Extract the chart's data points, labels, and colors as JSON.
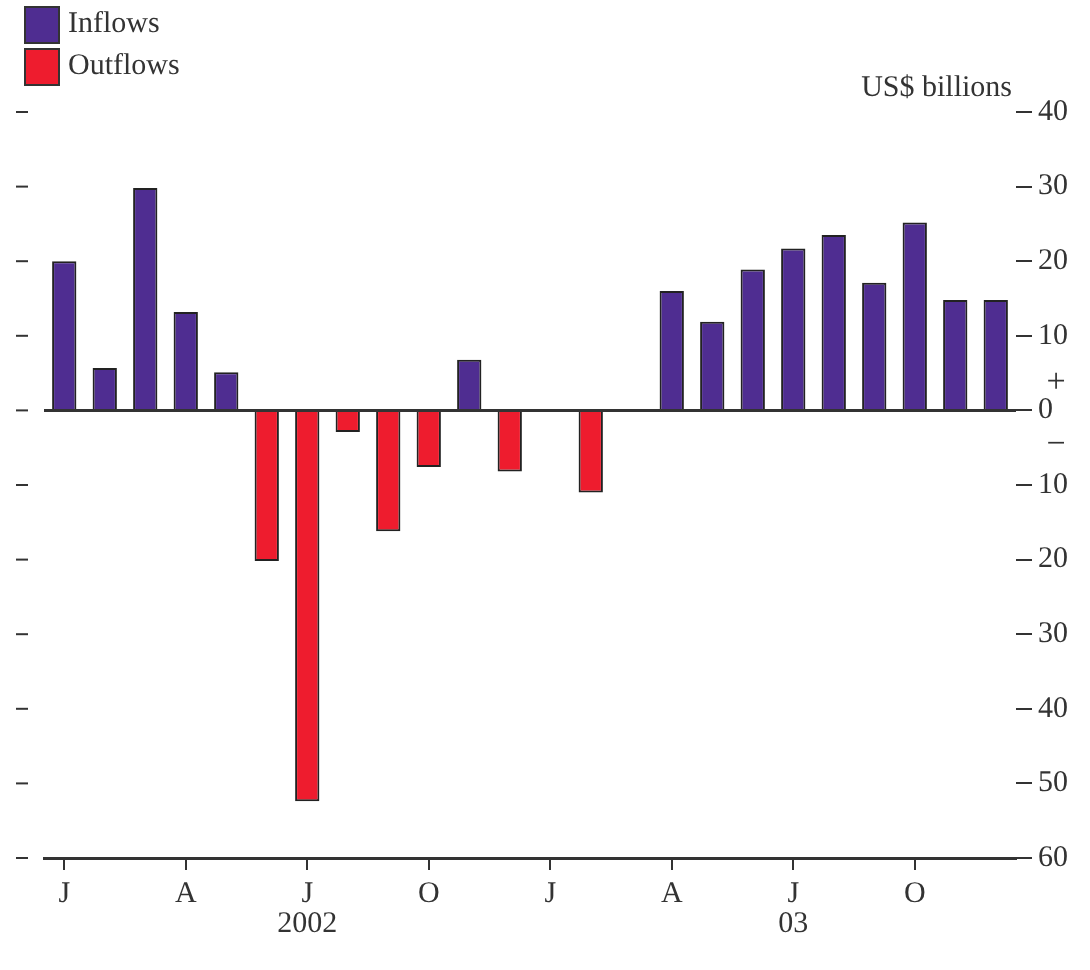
{
  "chart_data": {
    "type": "bar",
    "ylabel": "US$ billions",
    "categories": [
      "J",
      null,
      null,
      "A",
      null,
      null,
      "J",
      null,
      null,
      "O",
      null,
      null,
      "J",
      null,
      null,
      "A",
      null,
      null,
      "J",
      null,
      null,
      "O",
      null,
      null
    ],
    "series": [
      {
        "name": "Inflows",
        "color": "#4f2d91",
        "values": [
          20,
          5.7,
          29.8,
          13.2,
          5.1,
          null,
          null,
          null,
          null,
          null,
          6.8,
          null,
          null,
          null,
          null,
          16,
          11.9,
          18.9,
          21.7,
          23.5,
          17.1,
          25.2,
          14.8,
          14.8
        ]
      },
      {
        "name": "Outflows",
        "color": "#ee1c2e",
        "values": [
          null,
          null,
          null,
          null,
          null,
          -20.2,
          -52.4,
          -2.9,
          -16.2,
          -7.6,
          null,
          -8.2,
          null,
          -11,
          null,
          null,
          null,
          null,
          null,
          null,
          null,
          null,
          null,
          null
        ]
      }
    ],
    "stacked": true,
    "ylim": [
      -60,
      40
    ],
    "yticks": [
      {
        "value": -60,
        "label": "60"
      },
      {
        "value": -50,
        "label": "50"
      },
      {
        "value": -40,
        "label": "40"
      },
      {
        "value": -30,
        "label": "30"
      },
      {
        "value": -20,
        "label": "20"
      },
      {
        "value": -10,
        "label": "10"
      },
      0,
      10,
      20,
      30,
      40
    ],
    "annotations": [
      "+",
      "−",
      "2002",
      "03"
    ],
    "legend": "top left"
  }
}
